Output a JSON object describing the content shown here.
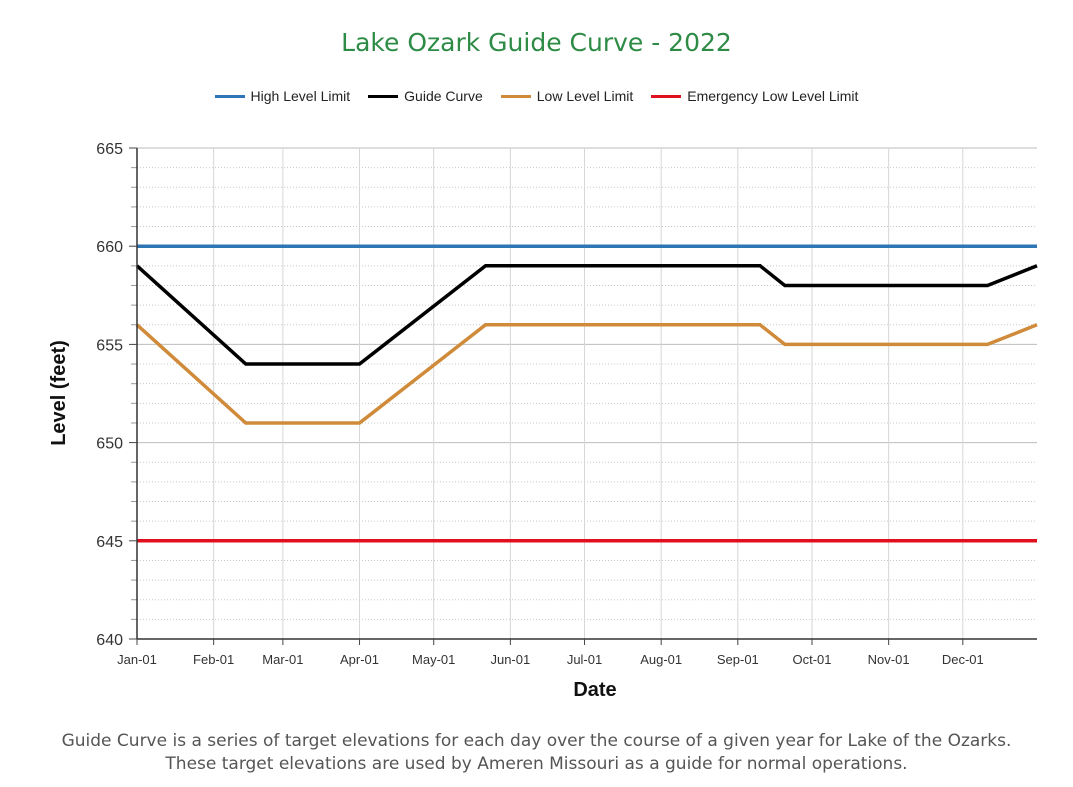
{
  "title": "Lake Ozark Guide Curve - 2022",
  "legend": [
    {
      "label": "High Level Limit",
      "color": "#2e75b6"
    },
    {
      "label": "Guide Curve",
      "color": "#000000"
    },
    {
      "label": "Low Level Limit",
      "color": "#d08b3a"
    },
    {
      "label": "Emergency Low Level Limit",
      "color": "#e0101e"
    }
  ],
  "axes": {
    "xlabel": "Date",
    "ylabel": "Level (feet)",
    "y_ticks": [
      "665",
      "660",
      "655",
      "650",
      "645",
      "640"
    ],
    "x_ticks": [
      "Jan-01",
      "Feb-01",
      "Mar-01",
      "Apr-01",
      "May-01",
      "Jun-01",
      "Jul-01",
      "Aug-01",
      "Sep-01",
      "Oct-01",
      "Nov-01",
      "Dec-01"
    ]
  },
  "caption": {
    "line1": "Guide Curve is a series of target elevations for each day over the course of a given year for Lake of the Ozarks.",
    "line2": "These target elevations are used by Ameren Missouri as a guide for normal operations."
  },
  "chart_data": {
    "type": "line",
    "title": "Lake Ozark Guide Curve - 2022",
    "xlabel": "Date",
    "ylabel": "Level (feet)",
    "ylim": [
      640,
      665
    ],
    "y_major_step": 5,
    "y_minor_step": 1,
    "x_tick_labels": [
      "Jan-01",
      "Feb-01",
      "Mar-01",
      "Apr-01",
      "May-01",
      "Jun-01",
      "Jul-01",
      "Aug-01",
      "Sep-01",
      "Oct-01",
      "Nov-01",
      "Dec-01"
    ],
    "grid": true,
    "legend_position": "top",
    "series": [
      {
        "name": "High Level Limit",
        "color": "#2e75b6",
        "points": [
          [
            "Jan-01",
            660
          ],
          [
            "Dec-31",
            660
          ]
        ]
      },
      {
        "name": "Guide Curve",
        "color": "#000000",
        "points": [
          [
            "Jan-01",
            659
          ],
          [
            "Feb-14",
            654
          ],
          [
            "Apr-01",
            654
          ],
          [
            "May-22",
            659
          ],
          [
            "Sep-10",
            659
          ],
          [
            "Sep-20",
            658
          ],
          [
            "Dec-11",
            658
          ],
          [
            "Dec-31",
            659
          ]
        ]
      },
      {
        "name": "Low Level Limit",
        "color": "#d08b3a",
        "points": [
          [
            "Jan-01",
            656
          ],
          [
            "Feb-14",
            651
          ],
          [
            "Apr-01",
            651
          ],
          [
            "May-22",
            656
          ],
          [
            "Sep-10",
            656
          ],
          [
            "Sep-20",
            655
          ],
          [
            "Dec-11",
            655
          ],
          [
            "Dec-31",
            656
          ]
        ]
      },
      {
        "name": "Emergency Low Level Limit",
        "color": "#e0101e",
        "points": [
          [
            "Jan-01",
            645
          ],
          [
            "Dec-31",
            645
          ]
        ]
      }
    ]
  }
}
